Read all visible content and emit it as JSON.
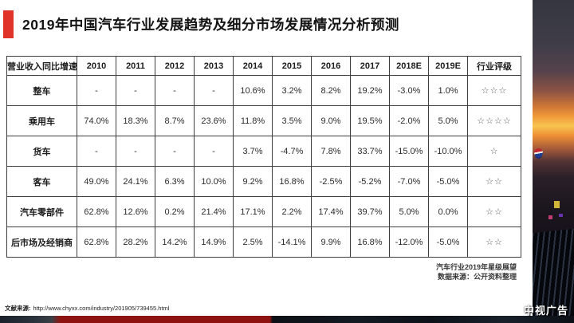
{
  "title": "2019年中国汽车行业发展趋势及细分市场发展情况分析预测",
  "chart_data": {
    "type": "table",
    "title": "2019年中国汽车行业发展趋势及细分市场发展情况分析预测",
    "columns": [
      "营业收入同比增速",
      "2010",
      "2011",
      "2012",
      "2013",
      "2014",
      "2015",
      "2016",
      "2017",
      "2018E",
      "2019E",
      "行业评级"
    ],
    "rows": [
      [
        "整车",
        "-",
        "-",
        "-",
        "-",
        "10.6%",
        "3.2%",
        "8.2%",
        "19.2%",
        "-3.0%",
        "1.0%",
        "☆☆☆"
      ],
      [
        "乘用车",
        "74.0%",
        "18.3%",
        "8.7%",
        "23.6%",
        "11.8%",
        "3.5%",
        "9.0%",
        "19.5%",
        "-2.0%",
        "5.0%",
        "☆☆☆☆"
      ],
      [
        "货车",
        "-",
        "-",
        "-",
        "-",
        "3.7%",
        "-4.7%",
        "7.8%",
        "33.7%",
        "-15.0%",
        "-10.0%",
        "☆"
      ],
      [
        "客车",
        "49.0%",
        "24.1%",
        "6.3%",
        "10.0%",
        "9.2%",
        "16.8%",
        "-2.5%",
        "-5.2%",
        "-7.0%",
        "-5.0%",
        "☆☆"
      ],
      [
        "汽车零部件",
        "62.8%",
        "12.6%",
        "0.2%",
        "21.4%",
        "17.1%",
        "2.2%",
        "17.4%",
        "39.7%",
        "5.0%",
        "0.0%",
        "☆☆"
      ],
      [
        "后市场及经销商",
        "62.8%",
        "28.2%",
        "14.2%",
        "14.9%",
        "2.5%",
        "-14.1%",
        "9.9%",
        "16.8%",
        "-12.0%",
        "-5.0%",
        "☆☆"
      ]
    ],
    "star_ratings": {
      "整车": 3,
      "乘用车": 4,
      "货车": 1,
      "客车": 2,
      "汽车零部件": 2,
      "后市场及经销商": 2
    },
    "notes": [
      "汽车行业2019年星级展望",
      "数据来源：公开资料整理"
    ]
  },
  "caption": {
    "line1": "汽车行业2019年星级展望",
    "line2": "数据来源：公开资料整理"
  },
  "footer": {
    "source_label": "文献来源:",
    "source_url": "http://www.chyxx.com/industry/201905/739455.html"
  },
  "watermark": "中视广告",
  "colors": {
    "accent_red": "#e0342b",
    "table_border": "#3f3f3f",
    "bottom_band_red": "#8e1310"
  }
}
